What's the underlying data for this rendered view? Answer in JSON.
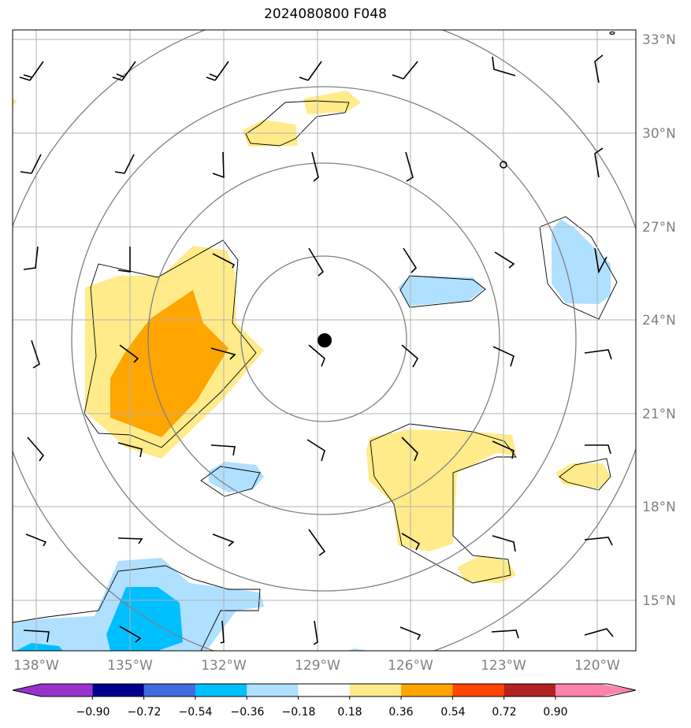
{
  "title": "2024080800 F048",
  "lat_labels": [
    "33°N",
    "30°N",
    "27°N",
    "24°N",
    "21°N",
    "18°N",
    "15°N"
  ],
  "lon_labels": [
    "138°W",
    "135°W",
    "132°W",
    "129°W",
    "126°W",
    "123°W",
    "120°W"
  ],
  "colorbar": {
    "labels": [
      "−0.90",
      "−0.72",
      "−0.54",
      "−0.36",
      "−0.18",
      "0.18",
      "0.36",
      "0.54",
      "0.72",
      "0.90"
    ],
    "colors": [
      "#9932cc",
      "#00008b",
      "#4169e1",
      "#00bfff",
      "#b0e0ff",
      "#ffffff",
      "#ffeb8a",
      "#ffa500",
      "#ff4500",
      "#b22222",
      "#ff82ab"
    ]
  },
  "colors": {
    "light_blue": "#b0e0ff",
    "blue": "#00bfff",
    "light_yellow": "#ffeb8a",
    "orange": "#ffa500",
    "ring": "#808080",
    "grid": "#b0b0b0"
  },
  "center_marker": "storm-center-dot",
  "secondary_marker": "open-circle-marker"
}
